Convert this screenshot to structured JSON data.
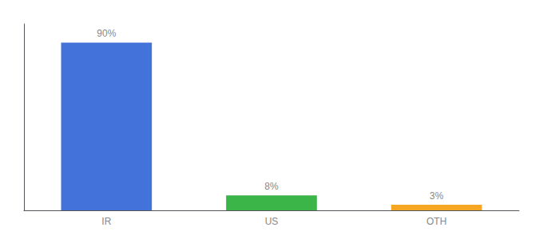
{
  "chart_data": {
    "type": "bar",
    "categories": [
      "IR",
      "US",
      "OTH"
    ],
    "values": [
      90,
      8,
      3
    ],
    "value_labels": [
      "90%",
      "8%",
      "3%"
    ],
    "data_labels": true,
    "colors": [
      "#4472db",
      "#3cb548",
      "#f5a623"
    ],
    "ylim": [
      0,
      100
    ],
    "tick_labels": "x",
    "grid": false
  }
}
